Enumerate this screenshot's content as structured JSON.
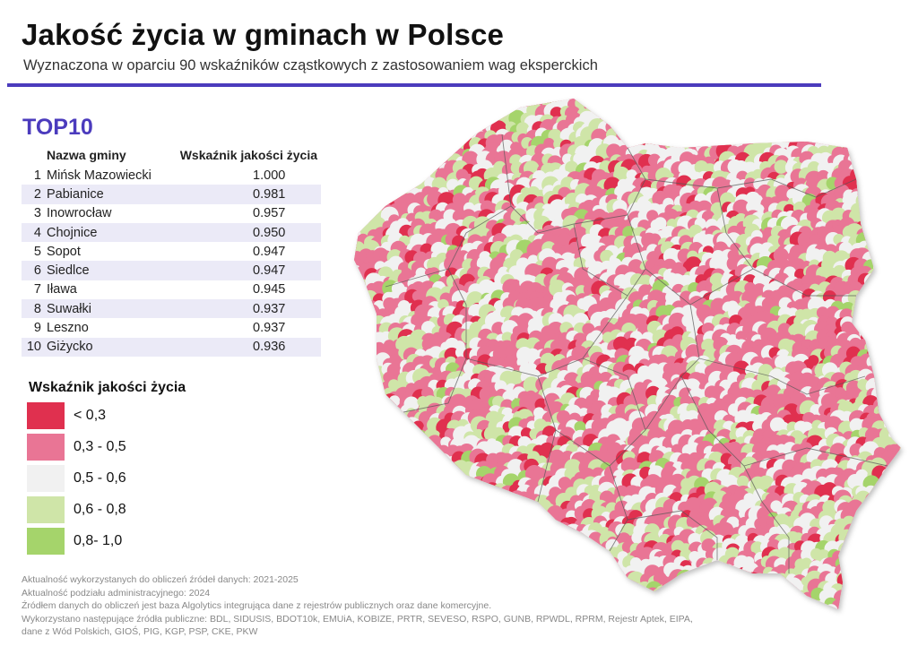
{
  "header": {
    "title": "Jakość życia w gminach w Polsce",
    "subtitle": "Wyznaczona w oparciu 90 wskaźników cząstkowych z zastosowaniem wag eksperckich",
    "accent": "#4b3bbd"
  },
  "top10": {
    "title": "TOP10",
    "columns": [
      "Nazwa gminy",
      "Wskaźnik jakości życia"
    ],
    "rows": [
      {
        "rank": "1",
        "name": "Mińsk Mazowiecki",
        "value": "1.000"
      },
      {
        "rank": "2",
        "name": "Pabianice",
        "value": "0.981"
      },
      {
        "rank": "3",
        "name": "Inowrocław",
        "value": "0.957"
      },
      {
        "rank": "4",
        "name": "Chojnice",
        "value": "0.950"
      },
      {
        "rank": "5",
        "name": "Sopot",
        "value": "0.947"
      },
      {
        "rank": "6",
        "name": "Siedlce",
        "value": "0.947"
      },
      {
        "rank": "7",
        "name": "Iława",
        "value": "0.945"
      },
      {
        "rank": "8",
        "name": "Suwałki",
        "value": "0.937"
      },
      {
        "rank": "9",
        "name": "Leszno",
        "value": "0.937"
      },
      {
        "rank": "10",
        "name": "Giżycko",
        "value": "0.936"
      }
    ]
  },
  "legend": {
    "title": "Wskaźnik jakości życia",
    "items": [
      {
        "label": "< 0,3",
        "color": "#e0304f"
      },
      {
        "label": "0,3 - 0,5",
        "color": "#e97595"
      },
      {
        "label": "0,5 - 0,6",
        "color": "#f1f1f1"
      },
      {
        "label": "0,6 - 0,8",
        "color": "#cfe5a8"
      },
      {
        "label": "0,8- 1,0",
        "color": "#a5d46b"
      }
    ]
  },
  "footer": [
    "Aktualność wykorzystanych do obliczeń źródeł danych: 2021-2025",
    "Aktualność podziału administracyjnego: 2024",
    "Źródłem danych do obliczeń jest baza Algolytics integrująca dane z rejestrów publicznych oraz dane komercyjne.",
    "Wykorzystano następujące źródła publiczne: BDL, SIDUSIS, BDOT10k, EMUiA, KOBIZE, PRTR, SEVESO, RSPO, GUNB, RPWDL, RPRM, Rejestr Aptek, EIPA,",
    "dane z Wód Polskich, GIOŚ, PIG, KGP, PSP, CKE, PKW"
  ]
}
